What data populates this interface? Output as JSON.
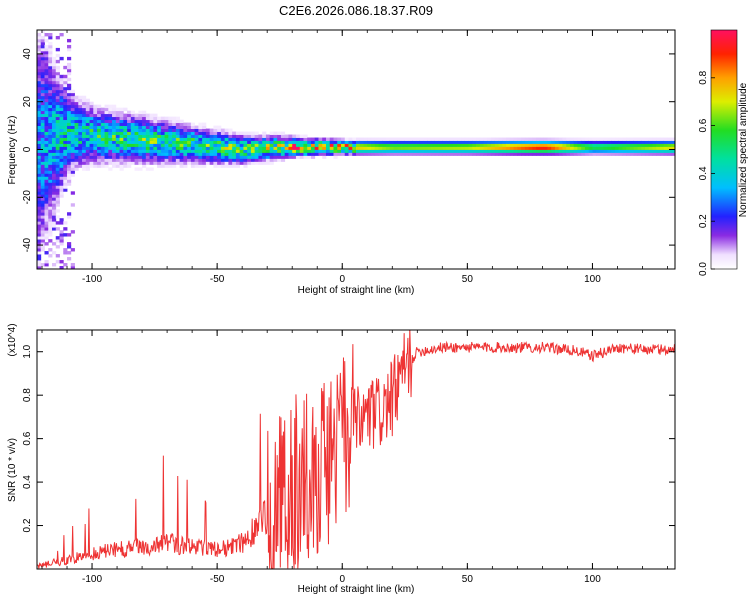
{
  "figure_title": "C2E6.2026.086.18.37.R09",
  "chart_data": [
    {
      "type": "heatmap",
      "title": "C2E6.2026.086.18.37.R09",
      "xlabel": "Height of straight line (km)",
      "ylabel": "Frequency (Hz)",
      "xlim": [
        -122,
        133
      ],
      "ylim": [
        -50,
        50
      ],
      "xticks": [
        -100,
        -50,
        0,
        50,
        100
      ],
      "yticks": [
        -40,
        -20,
        0,
        20,
        40
      ],
      "colorbar": {
        "label": "Normalized spectral amplitude",
        "range": [
          0,
          1
        ],
        "ticks": [
          0.0,
          0.2,
          0.4,
          0.6,
          0.8
        ]
      },
      "ridge": [
        {
          "x": -122,
          "freq": 2,
          "spread": 25,
          "amp": 0.3
        },
        {
          "x": -110,
          "freq": 7,
          "spread": 8,
          "amp": 0.45
        },
        {
          "x": -100,
          "freq": 6,
          "spread": 6,
          "amp": 0.45
        },
        {
          "x": -80,
          "freq": 4,
          "spread": 5,
          "amp": 0.5
        },
        {
          "x": -60,
          "freq": 2,
          "spread": 4,
          "amp": 0.5
        },
        {
          "x": -40,
          "freq": 0,
          "spread": 3,
          "amp": 0.55
        },
        {
          "x": -25,
          "freq": 1,
          "spread": 2.5,
          "amp": 0.6
        },
        {
          "x": -20,
          "freq": 1,
          "spread": 2,
          "amp": 0.8
        },
        {
          "x": 0,
          "freq": 1,
          "spread": 1.5,
          "amp": 0.8
        },
        {
          "x": 20,
          "freq": 1,
          "spread": 1.5,
          "amp": 0.65
        },
        {
          "x": 50,
          "freq": 1,
          "spread": 1.5,
          "amp": 0.7
        },
        {
          "x": 80,
          "freq": 1,
          "spread": 1.5,
          "amp": 0.95
        },
        {
          "x": 100,
          "freq": 1,
          "spread": 1.5,
          "amp": 0.55
        },
        {
          "x": 133,
          "freq": 1,
          "spread": 1.5,
          "amp": 0.75
        }
      ]
    },
    {
      "type": "line",
      "xlabel": "Height of straight line (km)",
      "ylabel": "SNR (10 * v/v)",
      "y_multiplier": "(x10^4)",
      "xlim": [
        -122,
        133
      ],
      "ylim": [
        0,
        1.1
      ],
      "xticks": [
        -100,
        -50,
        0,
        50,
        100
      ],
      "yticks": [
        0.2,
        0.4,
        0.6,
        0.8,
        1.0
      ],
      "series": [
        {
          "name": "SNR",
          "color": "#ee3333",
          "x": [
            -122,
            -115,
            -110,
            -100,
            -90,
            -80,
            -70,
            -60,
            -50,
            -45,
            -40,
            -35,
            -30,
            -25,
            -20,
            -15,
            -10,
            -5,
            0,
            5,
            10,
            15,
            20,
            25,
            30,
            40,
            50,
            60,
            70,
            80,
            90,
            95,
            100,
            110,
            120,
            133
          ],
          "y": [
            0.01,
            0.03,
            0.04,
            0.07,
            0.09,
            0.1,
            0.12,
            0.1,
            0.09,
            0.1,
            0.12,
            0.18,
            0.25,
            0.32,
            0.38,
            0.42,
            0.45,
            0.52,
            0.6,
            0.65,
            0.7,
            0.72,
            0.78,
            0.92,
            1.0,
            1.02,
            1.02,
            1.02,
            1.02,
            1.02,
            1.01,
            1.0,
            0.98,
            1.02,
            1.01,
            1.01
          ]
        }
      ]
    }
  ]
}
